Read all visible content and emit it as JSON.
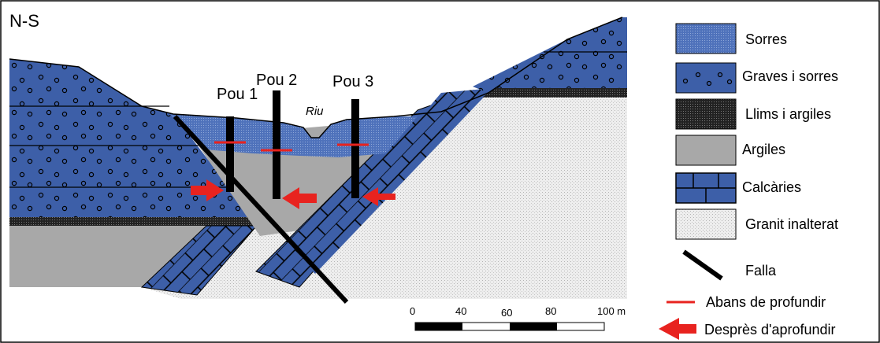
{
  "section_label": "N-S",
  "wells": [
    {
      "label": "Pou 1"
    },
    {
      "label": "Pou 2"
    },
    {
      "label": "Pou 3"
    }
  ],
  "river_label": "Riu",
  "legend": [
    {
      "label": "Sorres",
      "symbol": "sand-pattern"
    },
    {
      "label": "Graves i sorres",
      "symbol": "gravel-pattern"
    },
    {
      "label": "Llims i argiles",
      "symbol": "silt-pattern"
    },
    {
      "label": "Argiles",
      "symbol": "clay-fill"
    },
    {
      "label": "Calcàries",
      "symbol": "limestone-pattern"
    },
    {
      "label": "Granit inalterat",
      "symbol": "granite-pattern"
    },
    {
      "label": "Falla",
      "symbol": "fault-line"
    },
    {
      "label": "Abans de profundir",
      "symbol": "red-dash"
    },
    {
      "label": "Desprès d'aprofundir",
      "symbol": "red-arrow"
    }
  ],
  "scale_bar": {
    "ticks": [
      "0",
      "40",
      "60",
      "80",
      "100 m"
    ]
  },
  "colors": {
    "blue": "#3d5fa8",
    "sand_blue": "#5d7fc4",
    "clay": "#a8a8a8",
    "granite": "#e4e4e4",
    "red": "#e8231f",
    "black": "#000000"
  }
}
